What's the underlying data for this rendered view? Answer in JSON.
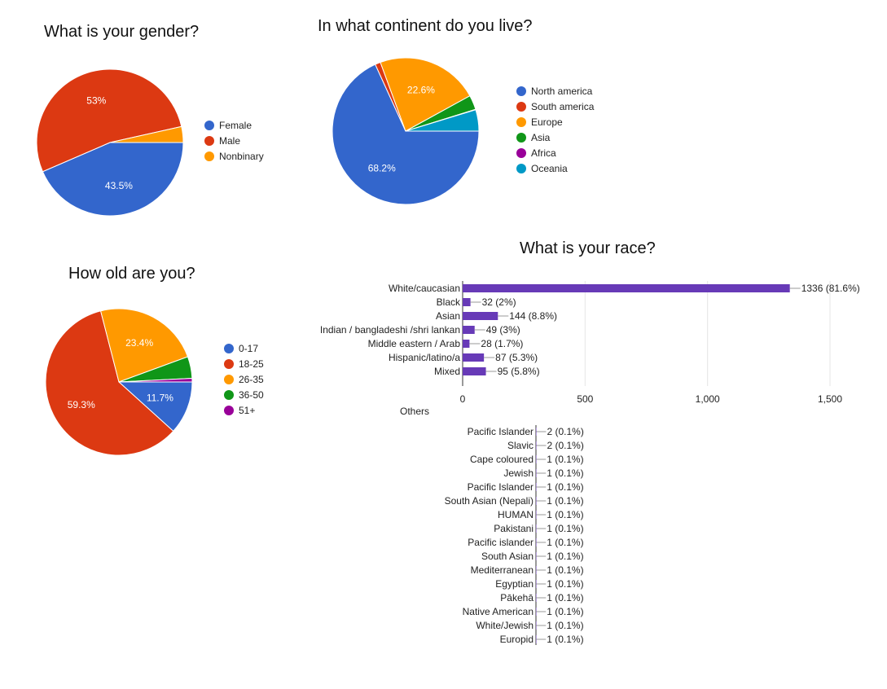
{
  "chart_data": [
    {
      "type": "pie",
      "title": "What is your gender?",
      "labels": [
        "Female",
        "Male",
        "Nonbinary"
      ],
      "values": [
        43.5,
        53.0,
        3.5
      ],
      "slice_labels": [
        "43.5%",
        "53%",
        ""
      ],
      "colors": [
        "#3366cc",
        "#dc3912",
        "#ff9900"
      ],
      "legend": "right"
    },
    {
      "type": "pie",
      "title": "In what continent do you live?",
      "labels": [
        "North america",
        "South america",
        "Europe",
        "Asia",
        "Africa",
        "Oceania"
      ],
      "values": [
        68.2,
        1.2,
        22.6,
        3.2,
        0.1,
        4.7
      ],
      "slice_labels": [
        "68.2%",
        "",
        "22.6%",
        "",
        "",
        ""
      ],
      "colors": [
        "#3366cc",
        "#dc3912",
        "#ff9900",
        "#109618",
        "#990099",
        "#0099c6"
      ],
      "legend": "right"
    },
    {
      "type": "pie",
      "title": "How old are you?",
      "labels": [
        "0-17",
        "18-25",
        "26-35",
        "36-50",
        "51+"
      ],
      "values": [
        11.7,
        59.3,
        23.4,
        4.8,
        0.8
      ],
      "slice_labels": [
        "11.7%",
        "59.3%",
        "23.4%",
        "",
        ""
      ],
      "colors": [
        "#3366cc",
        "#dc3912",
        "#ff9900",
        "#109618",
        "#990099"
      ],
      "legend": "right"
    },
    {
      "type": "bar",
      "orientation": "horizontal",
      "title": "What is your race?",
      "categories": [
        "White/caucasian",
        "Black",
        "Asian",
        "Indian / bangladeshi /shri lankan",
        "Middle eastern / Arab",
        "Hispanic/latino/a",
        "Mixed"
      ],
      "values": [
        1336,
        32,
        144,
        49,
        28,
        87,
        95
      ],
      "value_labels": [
        "1336 (81.6%)",
        "32 (2%)",
        "144 (8.8%)",
        "49 (3%)",
        "28 (1.7%)",
        "87 (5.3%)",
        "95 (5.8%)"
      ],
      "xlim": [
        0,
        1500
      ],
      "xticks": [
        "0",
        "500",
        "1,000",
        "1,500"
      ],
      "bar_color": "#673ab7",
      "grid": true,
      "overflow_label": "Others"
    },
    {
      "type": "bar",
      "orientation": "horizontal",
      "categories": [
        "Pacific Islander",
        "Slavic",
        "Cape coloured",
        "Jewish",
        "Pacific Islander",
        "South Asian (Nepali)",
        "HUMAN",
        "Pakistani",
        "Pacific islander",
        "South Asian",
        "Mediterranean",
        "Egyptian",
        "Pākehā",
        "Native American",
        "White/Jewish",
        "Europid"
      ],
      "values": [
        2,
        2,
        1,
        1,
        1,
        1,
        1,
        1,
        1,
        1,
        1,
        1,
        1,
        1,
        1,
        1
      ],
      "value_labels": [
        "2 (0.1%)",
        "2 (0.1%)",
        "1 (0.1%)",
        "1 (0.1%)",
        "1 (0.1%)",
        "1 (0.1%)",
        "1 (0.1%)",
        "1 (0.1%)",
        "1 (0.1%)",
        "1 (0.1%)",
        "1 (0.1%)",
        "1 (0.1%)",
        "1 (0.1%)",
        "1 (0.1%)",
        "1 (0.1%)",
        "1 (0.1%)"
      ],
      "xlim": [
        0,
        1500
      ],
      "bar_color": "#673ab7"
    }
  ]
}
